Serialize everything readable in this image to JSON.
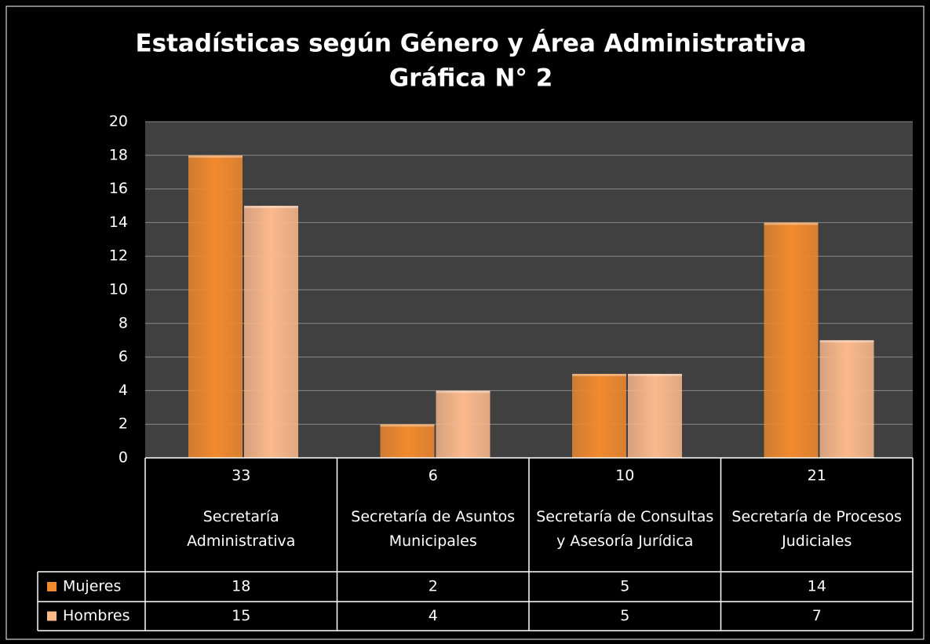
{
  "chart_data": {
    "type": "bar",
    "title": "Estadísticas según Género y Área Administrativa",
    "subtitle": "Gráfica N° 2",
    "categories": [
      "Secretaría Administrativa",
      "Secretaría de Asuntos Municipales",
      "Secretaría de Consultas y Asesoría Jurídica",
      "Secretaría de Procesos Judiciales"
    ],
    "category_totals": [
      33,
      6,
      10,
      21
    ],
    "series": [
      {
        "name": "Mujeres",
        "color": "#f28a2e",
        "values": [
          18,
          2,
          5,
          14
        ]
      },
      {
        "name": "Hombres",
        "color": "#fbb98c",
        "values": [
          15,
          4,
          5,
          7
        ]
      }
    ],
    "ylim": [
      0,
      20
    ],
    "yticks": [
      0,
      2,
      4,
      6,
      8,
      10,
      12,
      14,
      16,
      18,
      20
    ],
    "grid": true
  }
}
